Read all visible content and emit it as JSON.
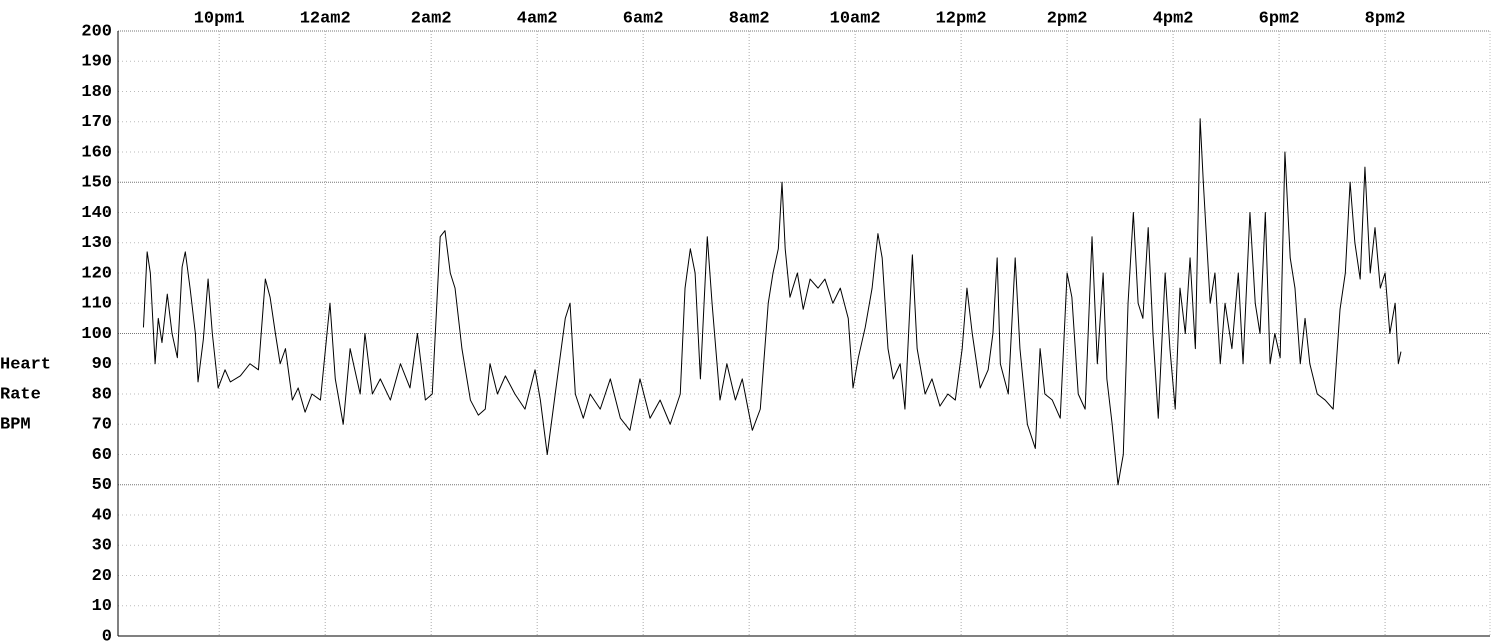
{
  "chart_data": {
    "type": "line",
    "ylabel": [
      "Heart",
      "Rate",
      "BPM"
    ],
    "xlim": [
      20.09,
      45.98
    ],
    "xticks": [
      {
        "value": 22,
        "label": "10pm1"
      },
      {
        "value": 24,
        "label": "12am2"
      },
      {
        "value": 26,
        "label": "2am2"
      },
      {
        "value": 28,
        "label": "4am2"
      },
      {
        "value": 30,
        "label": "6am2"
      },
      {
        "value": 32,
        "label": "8am2"
      },
      {
        "value": 34,
        "label": "10am2"
      },
      {
        "value": 36,
        "label": "12pm2"
      },
      {
        "value": 38,
        "label": "2pm2"
      },
      {
        "value": 40,
        "label": "4pm2"
      },
      {
        "value": 42,
        "label": "6pm2"
      },
      {
        "value": 44,
        "label": "8pm2"
      }
    ],
    "ylim": [
      0,
      200
    ],
    "yticks": [
      0,
      10,
      20,
      30,
      40,
      50,
      60,
      70,
      80,
      90,
      100,
      110,
      120,
      130,
      140,
      150,
      160,
      170,
      180,
      190,
      200
    ],
    "grid": true,
    "color": "#000000",
    "x": [
      20.57,
      20.64,
      20.7,
      20.79,
      20.85,
      20.92,
      21.02,
      21.11,
      21.21,
      21.3,
      21.36,
      21.45,
      21.55,
      21.6,
      21.7,
      21.79,
      21.87,
      21.98,
      22.11,
      22.21,
      22.4,
      22.58,
      22.74,
      22.87,
      22.96,
      23.06,
      23.15,
      23.25,
      23.38,
      23.49,
      23.62,
      23.75,
      23.91,
      24.09,
      24.19,
      24.34,
      24.47,
      24.66,
      24.75,
      24.89,
      25.04,
      25.23,
      25.42,
      25.6,
      25.74,
      25.89,
      26.02,
      26.17,
      26.26,
      26.36,
      26.45,
      26.58,
      26.74,
      26.89,
      27.02,
      27.11,
      27.25,
      27.4,
      27.58,
      27.77,
      27.96,
      28.06,
      28.19,
      28.34,
      28.53,
      28.62,
      28.72,
      28.87,
      29.0,
      29.19,
      29.38,
      29.57,
      29.75,
      29.94,
      30.13,
      30.32,
      30.51,
      30.7,
      30.79,
      30.89,
      30.98,
      31.08,
      31.21,
      31.3,
      31.45,
      31.58,
      31.74,
      31.87,
      31.98,
      32.06,
      32.21,
      32.36,
      32.45,
      32.55,
      32.62,
      32.68,
      32.77,
      32.91,
      33.02,
      33.15,
      33.3,
      33.43,
      33.58,
      33.72,
      33.87,
      33.96,
      34.06,
      34.19,
      34.32,
      34.43,
      34.51,
      34.62,
      34.72,
      34.85,
      34.94,
      35.08,
      35.17,
      35.32,
      35.45,
      35.6,
      35.75,
      35.89,
      36.02,
      36.11,
      36.21,
      36.36,
      36.51,
      36.6,
      36.68,
      36.74,
      36.89,
      37.02,
      37.11,
      37.25,
      37.4,
      37.49,
      37.58,
      37.72,
      37.87,
      38.0,
      38.09,
      38.21,
      38.34,
      38.47,
      38.57,
      38.68,
      38.75,
      38.85,
      38.96,
      39.06,
      39.15,
      39.25,
      39.34,
      39.43,
      39.53,
      39.62,
      39.72,
      39.85,
      39.94,
      40.04,
      40.13,
      40.23,
      40.32,
      40.42,
      40.51,
      40.57,
      40.7,
      40.79,
      40.89,
      40.98,
      41.11,
      41.23,
      41.32,
      41.45,
      41.55,
      41.64,
      41.74,
      41.83,
      41.92,
      42.02,
      42.11,
      42.21,
      42.3,
      42.4,
      42.49,
      42.58,
      42.72,
      42.87,
      43.02,
      43.15,
      43.25,
      43.34,
      43.43,
      43.53,
      43.62,
      43.72,
      43.81,
      43.91,
      44.0,
      44.09,
      44.19,
      44.25,
      44.3
    ],
    "values": [
      102,
      127,
      120,
      90,
      105,
      97,
      113,
      100,
      92,
      122,
      127,
      115,
      100,
      84,
      98,
      118,
      100,
      82,
      88,
      84,
      86,
      90,
      88,
      118,
      112,
      100,
      90,
      95,
      78,
      82,
      74,
      80,
      78,
      110,
      85,
      70,
      95,
      80,
      100,
      80,
      85,
      78,
      90,
      82,
      100,
      78,
      80,
      132,
      134,
      120,
      115,
      95,
      78,
      73,
      75,
      90,
      80,
      86,
      80,
      75,
      88,
      78,
      60,
      80,
      105,
      110,
      80,
      72,
      80,
      75,
      85,
      72,
      68,
      85,
      72,
      78,
      70,
      80,
      115,
      128,
      120,
      85,
      132,
      110,
      78,
      90,
      78,
      85,
      75,
      68,
      75,
      110,
      120,
      128,
      150,
      128,
      112,
      120,
      108,
      118,
      115,
      118,
      110,
      115,
      105,
      82,
      92,
      102,
      115,
      133,
      125,
      95,
      85,
      90,
      75,
      126,
      95,
      80,
      85,
      76,
      80,
      78,
      95,
      115,
      100,
      82,
      88,
      100,
      125,
      90,
      80,
      125,
      95,
      70,
      62,
      95,
      80,
      78,
      72,
      120,
      112,
      80,
      75,
      132,
      90,
      120,
      85,
      70,
      50,
      60,
      110,
      140,
      110,
      105,
      135,
      100,
      72,
      120,
      95,
      75,
      115,
      100,
      125,
      95,
      171,
      150,
      110,
      120,
      90,
      110,
      95,
      120,
      90,
      140,
      110,
      100,
      140,
      90,
      100,
      92,
      160,
      125,
      115,
      90,
      105,
      90,
      80,
      78,
      75,
      108,
      120,
      150,
      130,
      118,
      155,
      120,
      135,
      115,
      120,
      100,
      110,
      90,
      94
    ]
  }
}
